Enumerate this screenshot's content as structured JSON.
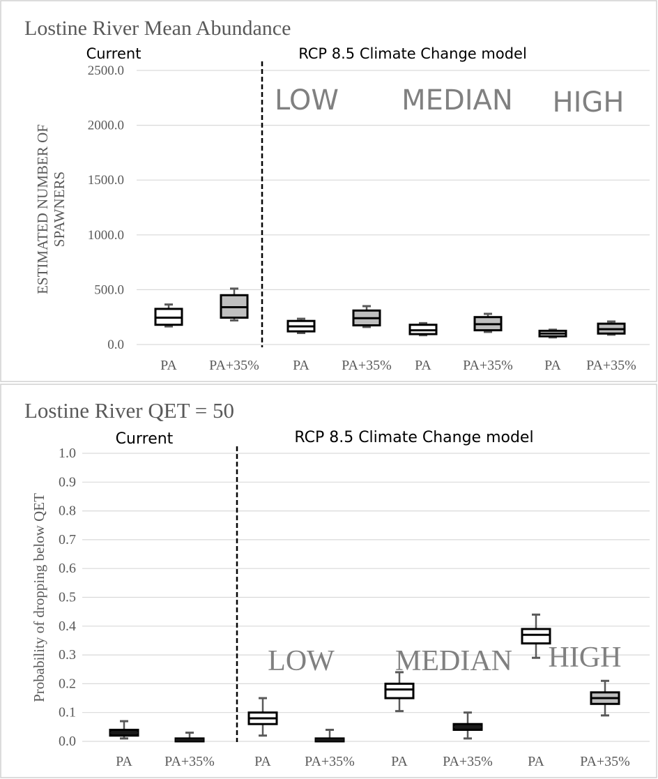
{
  "chart_data": [
    {
      "type": "boxplot",
      "title": "Lostine River Mean Abundance",
      "ylabel": "ESTIMATED NUMBER OF SPAWNERS",
      "ylabel_lines": [
        "ESTIMATED NUMBER OF",
        "SPAWNERS"
      ],
      "xlabel": "",
      "ylim": [
        0,
        2500
      ],
      "yticks": [
        0,
        500,
        1000,
        1500,
        2000,
        2500
      ],
      "ytick_labels": [
        "0.0",
        "500.0",
        "1000.0",
        "1500.0",
        "2000.0",
        "2500.0"
      ],
      "grid": true,
      "categories": [
        "PA",
        "PA+35%",
        "PA",
        "PA+35%",
        "PA",
        "PA+35%",
        "PA",
        "PA+35%"
      ],
      "section_labels": {
        "current": "Current",
        "climate": "RCP 8.5 Climate Change model"
      },
      "scenario_labels": [
        "LOW",
        "MEDIAN",
        "HIGH"
      ],
      "boxes": [
        {
          "min": 165,
          "q1": 180,
          "median": 245,
          "q3": 325,
          "max": 365,
          "fill": "#ffffff"
        },
        {
          "min": 220,
          "q1": 245,
          "median": 340,
          "q3": 450,
          "max": 510,
          "fill": "#bfbfbf"
        },
        {
          "min": 105,
          "q1": 120,
          "median": 165,
          "q3": 215,
          "max": 235,
          "fill": "#ffffff"
        },
        {
          "min": 160,
          "q1": 175,
          "median": 240,
          "q3": 310,
          "max": 350,
          "fill": "#bfbfbf"
        },
        {
          "min": 85,
          "q1": 95,
          "median": 130,
          "q3": 180,
          "max": 195,
          "fill": "#ffffff"
        },
        {
          "min": 115,
          "q1": 130,
          "median": 185,
          "q3": 250,
          "max": 280,
          "fill": "#bfbfbf"
        },
        {
          "min": 65,
          "q1": 75,
          "median": 100,
          "q3": 125,
          "max": 135,
          "fill": "#ffffff"
        },
        {
          "min": 90,
          "q1": 100,
          "median": 140,
          "q3": 190,
          "max": 210,
          "fill": "#bfbfbf"
        }
      ]
    },
    {
      "type": "boxplot",
      "title": "Lostine River QET = 50",
      "ylabel": "Probability of dropping below QET",
      "xlabel": "",
      "ylim": [
        0,
        1.0
      ],
      "yticks": [
        0,
        0.1,
        0.2,
        0.3,
        0.4,
        0.5,
        0.6,
        0.7,
        0.8,
        0.9,
        1.0
      ],
      "ytick_labels": [
        "0.0",
        "0.1",
        "0.2",
        "0.3",
        "0.4",
        "0.5",
        "0.6",
        "0.7",
        "0.8",
        "0.9",
        "1.0"
      ],
      "grid": true,
      "categories": [
        "PA",
        "PA+35%",
        "PA",
        "PA+35%",
        "PA",
        "PA+35%",
        "PA",
        "PA+35%"
      ],
      "section_labels": {
        "current": "Current",
        "climate": "RCP 8.5 Climate Change model"
      },
      "scenario_labels": [
        "LOW",
        "MEDIAN",
        "HIGH"
      ],
      "boxes": [
        {
          "min": 0.01,
          "q1": 0.02,
          "median": 0.03,
          "q3": 0.04,
          "max": 0.07,
          "fill": "#1a1a1a"
        },
        {
          "min": 0.0,
          "q1": 0.0,
          "median": 0.005,
          "q3": 0.01,
          "max": 0.03,
          "fill": "#1a1a1a"
        },
        {
          "min": 0.02,
          "q1": 0.06,
          "median": 0.08,
          "q3": 0.1,
          "max": 0.15,
          "fill": "#ffffff"
        },
        {
          "min": 0.0,
          "q1": 0.0,
          "median": 0.005,
          "q3": 0.01,
          "max": 0.04,
          "fill": "#1a1a1a"
        },
        {
          "min": 0.105,
          "q1": 0.15,
          "median": 0.18,
          "q3": 0.2,
          "max": 0.24,
          "fill": "#ffffff"
        },
        {
          "min": 0.01,
          "q1": 0.04,
          "median": 0.05,
          "q3": 0.06,
          "max": 0.1,
          "fill": "#1a1a1a"
        },
        {
          "min": 0.29,
          "q1": 0.34,
          "median": 0.37,
          "q3": 0.39,
          "max": 0.44,
          "fill": "#ffffff"
        },
        {
          "min": 0.09,
          "q1": 0.13,
          "median": 0.15,
          "q3": 0.17,
          "max": 0.21,
          "fill": "#bfbfbf"
        }
      ]
    }
  ]
}
